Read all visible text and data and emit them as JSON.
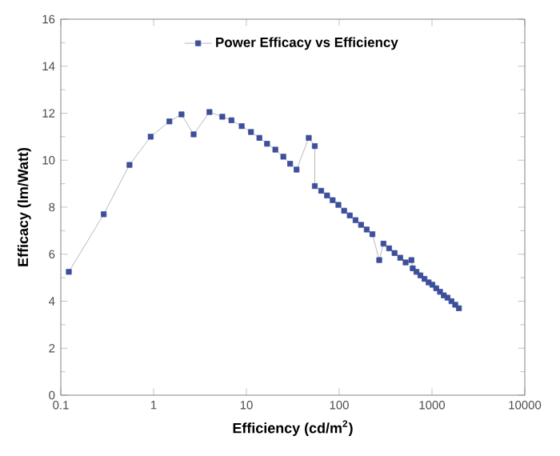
{
  "chart_data": {
    "type": "line",
    "xlabel": "Efficiency (cd/m$^{2}$)",
    "ylabel": "Efficacy (lm/Watt)",
    "log": "x",
    "xlim": [
      0.1,
      10000
    ],
    "xticks": [
      0.1,
      1,
      10,
      100,
      1000,
      10000
    ],
    "ylim": [
      0,
      16
    ],
    "yticks": [
      0,
      2,
      4,
      6,
      8,
      10,
      12,
      14,
      16
    ],
    "grid": false,
    "legend": "top",
    "marker": "square",
    "line_style": "solid",
    "series": [
      {
        "name": "Power Efficacy vs Efficiency",
        "color": "#3d4f9a",
        "x": [
          0.122,
          0.29,
          0.55,
          0.93,
          1.48,
          2.0,
          2.7,
          4.0,
          5.5,
          6.9,
          8.9,
          11.2,
          13.8,
          16.7,
          20.5,
          25,
          29.6,
          34.7,
          47,
          54.6,
          54.6,
          64,
          74,
          85,
          98,
          113,
          130,
          150,
          172,
          198,
          228,
          270,
          300,
          345,
          395,
          455,
          520,
          600,
          620,
          680,
          750,
          830,
          920,
          1010,
          1110,
          1220,
          1340,
          1470,
          1620,
          1780,
          1950
        ],
        "values": [
          5.25,
          7.7,
          9.8,
          11.0,
          11.65,
          11.95,
          11.1,
          12.05,
          11.85,
          11.7,
          11.45,
          11.2,
          10.95,
          10.7,
          10.45,
          10.15,
          9.85,
          9.6,
          10.95,
          10.6,
          8.9,
          8.7,
          8.5,
          8.3,
          8.1,
          7.85,
          7.65,
          7.45,
          7.25,
          7.05,
          6.85,
          5.75,
          6.45,
          6.25,
          6.05,
          5.85,
          5.65,
          5.75,
          5.4,
          5.25,
          5.1,
          4.95,
          4.8,
          4.7,
          4.55,
          4.4,
          4.25,
          4.15,
          4.0,
          3.85,
          3.7
        ]
      }
    ]
  }
}
